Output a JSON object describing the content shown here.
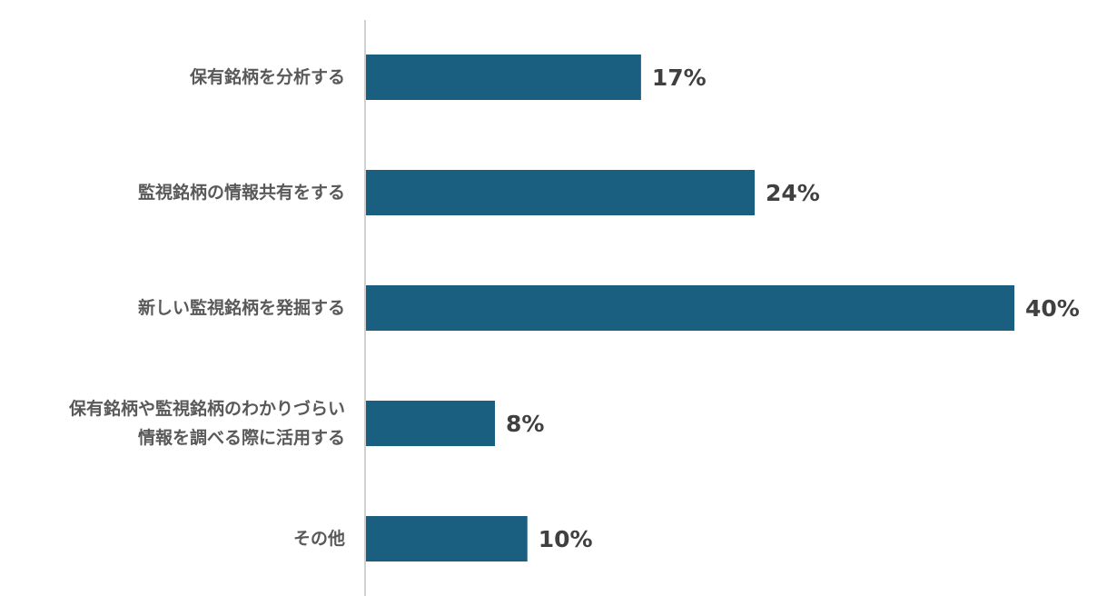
{
  "chart_data": {
    "type": "bar",
    "orientation": "horizontal",
    "categories": [
      "保有銘柄を分析する",
      "監視銘柄の情報共有をする",
      "新しい監視銘柄を発掘する",
      "保有銘柄や監視銘柄のわかりづらい\n情報を調べる際に活用する",
      "その他"
    ],
    "values": [
      17,
      24,
      40,
      8,
      10
    ],
    "value_labels": [
      "17%",
      "24%",
      "40%",
      "8%",
      "10%"
    ],
    "color": "#1a5f80"
  }
}
